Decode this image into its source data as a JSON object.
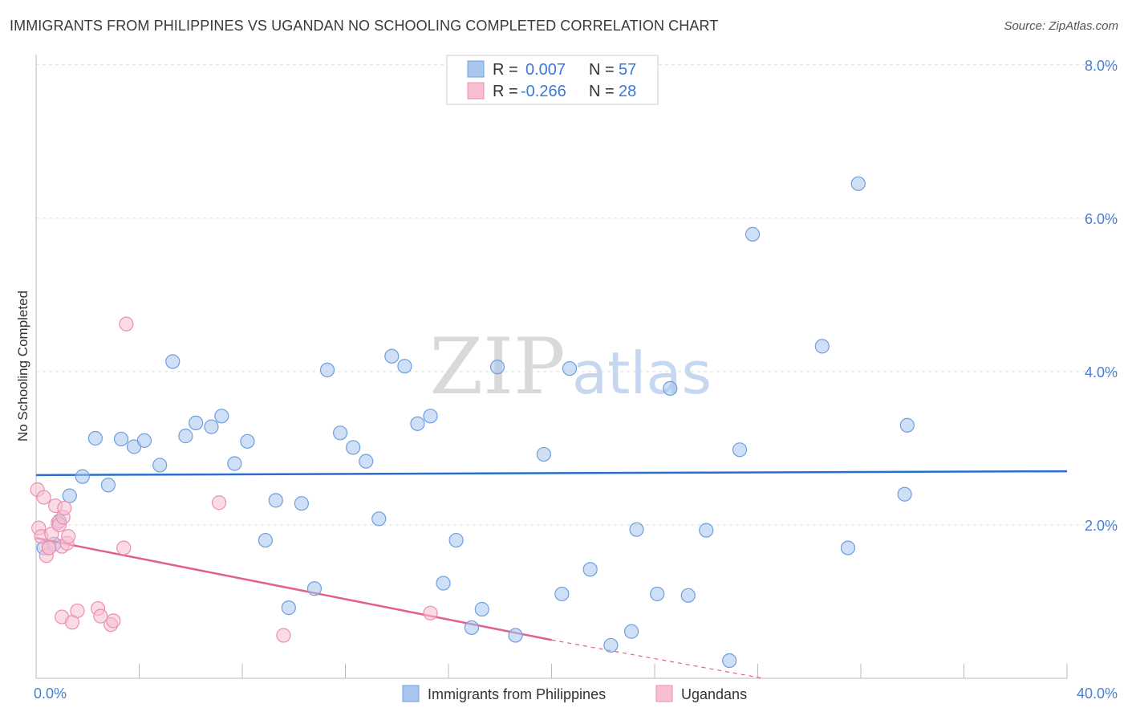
{
  "chart_data": {
    "type": "scatter",
    "title": "IMMIGRANTS FROM PHILIPPINES VS UGANDAN NO SCHOOLING COMPLETED CORRELATION CHART",
    "source": "Source: ZipAtlas.com",
    "xlabel": "",
    "ylabel": "No Schooling Completed",
    "xlim": [
      0,
      40
    ],
    "ylim": [
      0,
      8.5
    ],
    "x_tick_labels": [
      {
        "value": 0,
        "label": "0.0%"
      },
      {
        "value": 40,
        "label": "40.0%"
      }
    ],
    "y_tick_labels": [
      {
        "value": 2,
        "label": "2.0%"
      },
      {
        "value": 4,
        "label": "4.0%"
      },
      {
        "value": 6,
        "label": "6.0%"
      },
      {
        "value": 8,
        "label": "8.0%"
      }
    ],
    "watermark": {
      "zip": "ZIP",
      "atlas": "atlas"
    },
    "stats": [
      {
        "r_label": "R =",
        "r": "0.007",
        "n_label": "N =",
        "n": "57"
      },
      {
        "r_label": "R =",
        "r": "-0.266",
        "n_label": "N =",
        "n": "28"
      }
    ],
    "series": [
      {
        "name": "Immigrants from Philippines",
        "color": "#a8c6ee",
        "stroke": "#6f9ddf",
        "line_color": "#2a6fcf",
        "trend": {
          "x": [
            0,
            40
          ],
          "y": [
            2.65,
            2.7
          ]
        },
        "points": [
          [
            0.3,
            1.7
          ],
          [
            0.7,
            1.75
          ],
          [
            0.9,
            2.05
          ],
          [
            1.3,
            2.38
          ],
          [
            1.8,
            2.63
          ],
          [
            2.3,
            3.13
          ],
          [
            2.8,
            2.52
          ],
          [
            3.3,
            3.12
          ],
          [
            3.8,
            3.02
          ],
          [
            4.2,
            3.1
          ],
          [
            4.8,
            2.78
          ],
          [
            5.3,
            4.13
          ],
          [
            5.8,
            3.16
          ],
          [
            6.2,
            3.33
          ],
          [
            6.8,
            3.28
          ],
          [
            7.2,
            3.42
          ],
          [
            7.7,
            2.8
          ],
          [
            8.2,
            3.09
          ],
          [
            8.9,
            1.8
          ],
          [
            9.3,
            2.32
          ],
          [
            9.8,
            0.92
          ],
          [
            10.3,
            2.28
          ],
          [
            10.8,
            1.17
          ],
          [
            11.3,
            4.02
          ],
          [
            11.8,
            3.2
          ],
          [
            12.3,
            3.01
          ],
          [
            12.8,
            2.83
          ],
          [
            13.3,
            2.08
          ],
          [
            13.8,
            4.2
          ],
          [
            14.3,
            4.07
          ],
          [
            14.8,
            3.32
          ],
          [
            15.3,
            3.42
          ],
          [
            15.8,
            1.24
          ],
          [
            16.3,
            1.8
          ],
          [
            16.9,
            0.66
          ],
          [
            17.3,
            0.9
          ],
          [
            17.9,
            4.06
          ],
          [
            18.6,
            0.56
          ],
          [
            19.7,
            2.92
          ],
          [
            20.4,
            1.1
          ],
          [
            20.7,
            4.04
          ],
          [
            21.5,
            1.42
          ],
          [
            22.3,
            0.43
          ],
          [
            23.1,
            0.61
          ],
          [
            23.3,
            1.94
          ],
          [
            24.1,
            1.1
          ],
          [
            24.6,
            3.78
          ],
          [
            25.3,
            1.08
          ],
          [
            26.0,
            1.93
          ],
          [
            26.9,
            0.23
          ],
          [
            27.3,
            2.98
          ],
          [
            27.8,
            5.79
          ],
          [
            30.5,
            4.33
          ],
          [
            31.5,
            1.7
          ],
          [
            31.9,
            6.45
          ],
          [
            33.7,
            2.4
          ],
          [
            33.8,
            3.3
          ]
        ]
      },
      {
        "name": "Ugandans",
        "color": "#f7bfd1",
        "stroke": "#eb8fae",
        "line_color": "#e0608f",
        "trend": {
          "x": [
            0,
            20
          ],
          "y": [
            1.83,
            0.5
          ]
        },
        "trend_dashed": {
          "x": [
            20,
            28.2
          ],
          "y": [
            0.5,
            0.0
          ]
        },
        "points": [
          [
            0.05,
            2.46
          ],
          [
            0.1,
            1.96
          ],
          [
            0.2,
            1.85
          ],
          [
            0.3,
            2.36
          ],
          [
            0.4,
            1.6
          ],
          [
            0.5,
            1.7
          ],
          [
            0.6,
            1.88
          ],
          [
            0.75,
            2.25
          ],
          [
            0.85,
            2.03
          ],
          [
            0.9,
            2.0
          ],
          [
            1.0,
            0.8
          ],
          [
            1.0,
            1.72
          ],
          [
            1.05,
            2.1
          ],
          [
            1.1,
            2.22
          ],
          [
            1.2,
            1.76
          ],
          [
            1.25,
            1.85
          ],
          [
            1.4,
            0.73
          ],
          [
            1.6,
            0.88
          ],
          [
            2.4,
            0.91
          ],
          [
            2.5,
            0.81
          ],
          [
            2.9,
            0.7
          ],
          [
            3.0,
            0.75
          ],
          [
            3.4,
            1.7
          ],
          [
            3.5,
            4.62
          ],
          [
            7.1,
            2.29
          ],
          [
            9.6,
            0.56
          ],
          [
            15.3,
            0.85
          ],
          [
            0.5,
            1.7
          ]
        ]
      }
    ]
  }
}
